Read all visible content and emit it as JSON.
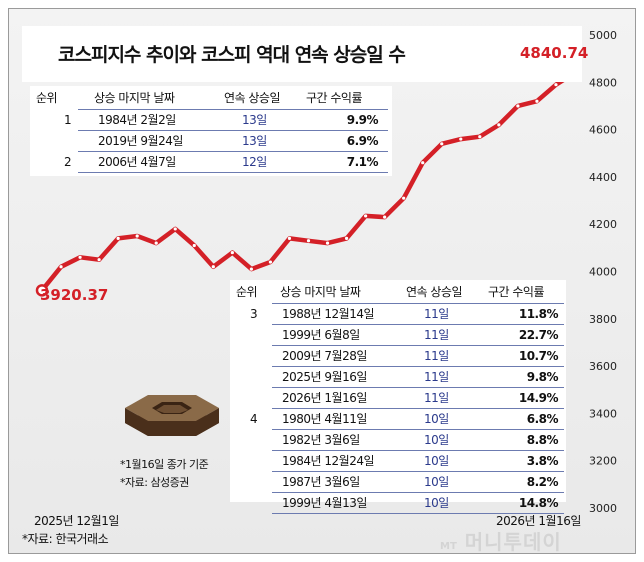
{
  "title": "코스피지수 추이와 코스피 역대 연속 상승일 수",
  "chart_data": {
    "type": "line",
    "title": "코스피지수 추이와 코스피 역대 연속 상승일 수",
    "x_start_label": "2025년 12월1일",
    "x_end_label": "2026년 1월16일",
    "ylim": [
      3000,
      5000
    ],
    "y_ticks": [
      3000,
      3200,
      3400,
      3600,
      3800,
      4000,
      4200,
      4400,
      4600,
      4800,
      5000
    ],
    "series": [
      {
        "name": "코스피지수",
        "values": [
          3920.37,
          4020,
          4060,
          4050,
          4140,
          4150,
          4120,
          4180,
          4110,
          4020,
          4080,
          4010,
          4040,
          4140,
          4130,
          4120,
          4140,
          4235,
          4230,
          4310,
          4460,
          4540,
          4560,
          4570,
          4620,
          4700,
          4720,
          4790,
          4840.74
        ]
      }
    ],
    "first_value_label": "3920.37",
    "last_value_label": "4840.74"
  },
  "table_top": {
    "headers": [
      "순위",
      "상승 마지막 날짜",
      "연속 상승일",
      "구간 수익률"
    ],
    "rows": [
      {
        "rank": "1",
        "date": "1984년 2월2일",
        "days": "13일",
        "ret": "9.9%"
      },
      {
        "rank": "",
        "date": "2019년 9월24일",
        "days": "13일",
        "ret": "6.9%"
      },
      {
        "rank": "2",
        "date": "2006년 4월7일",
        "days": "12일",
        "ret": "7.1%"
      }
    ]
  },
  "table_bottom": {
    "headers": [
      "순위",
      "상승 마지막 날짜",
      "연속 상승일",
      "구간 수익률"
    ],
    "rows": [
      {
        "rank": "3",
        "date": "1988년 12월14일",
        "days": "11일",
        "ret": "11.8%"
      },
      {
        "rank": "",
        "date": "1999년 6월8일",
        "days": "11일",
        "ret": "22.7%"
      },
      {
        "rank": "",
        "date": "2009년 7월28일",
        "days": "11일",
        "ret": "10.7%"
      },
      {
        "rank": "",
        "date": "2025년 9월16일",
        "days": "11일",
        "ret": "9.8%"
      },
      {
        "rank": "",
        "date": "2026년 1월16일",
        "days": "11일",
        "ret": "14.9%"
      },
      {
        "rank": "4",
        "date": "1980년 4월11일",
        "days": "10일",
        "ret": "6.8%"
      },
      {
        "rank": "",
        "date": "1982년 3월6일",
        "days": "10일",
        "ret": "8.8%"
      },
      {
        "rank": "",
        "date": "1984년 12월24일",
        "days": "10일",
        "ret": "3.8%"
      },
      {
        "rank": "",
        "date": "1987년 3월6일",
        "days": "10일",
        "ret": "8.2%"
      },
      {
        "rank": "",
        "date": "1999년 4월13일",
        "days": "10일",
        "ret": "14.8%"
      }
    ]
  },
  "notes": [
    "*1월16일 종가 기준",
    "*자료: 삼성증권"
  ],
  "source": "*자료: 한국거래소",
  "watermark": {
    "prefix": "MT",
    "name": "머니투데이"
  },
  "colors": {
    "line": "#d42027",
    "accent_blue": "#2b3a8c",
    "rule": "#6c7bb0"
  }
}
